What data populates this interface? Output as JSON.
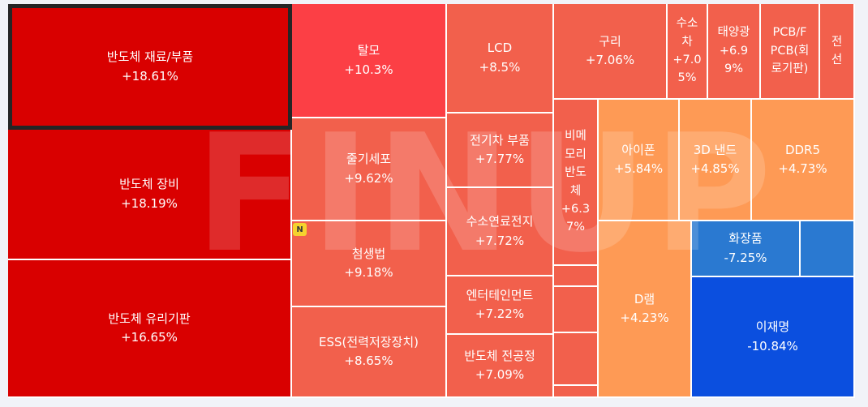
{
  "watermark": "FINUP",
  "badge": "N",
  "chart_data": {
    "type": "treemap",
    "items": [
      {
        "name": "반도체 재료/부품",
        "label_lines": [
          "반도체 재료/부품"
        ],
        "change": "+18.61%",
        "value": 18.61,
        "color": "#d90000",
        "selected": true
      },
      {
        "name": "반도체 장비",
        "label_lines": [
          "반도체 장비"
        ],
        "change": "+18.19%",
        "value": 18.19,
        "color": "#d90000"
      },
      {
        "name": "반도체 유리기판",
        "label_lines": [
          "반도체 유리기판"
        ],
        "change": "+16.65%",
        "value": 16.65,
        "color": "#d90000"
      },
      {
        "name": "탈모",
        "label_lines": [
          "탈모"
        ],
        "change": "+10.3%",
        "value": 10.3,
        "color": "#fc3f45"
      },
      {
        "name": "줄기세포",
        "label_lines": [
          "줄기세포"
        ],
        "change": "+9.62%",
        "value": 9.62,
        "color": "#f2604c"
      },
      {
        "name": "첨생법",
        "label_lines": [
          "첨생법"
        ],
        "change": "+9.18%",
        "value": 9.18,
        "color": "#f2604c"
      },
      {
        "name": "ESS(전력저장장치)",
        "label_lines": [
          "ESS(전력저장장치)"
        ],
        "change": "+8.65%",
        "value": 8.65,
        "color": "#f2604c"
      },
      {
        "name": "LCD",
        "label_lines": [
          "LCD"
        ],
        "change": "+8.5%",
        "value": 8.5,
        "color": "#f2604c"
      },
      {
        "name": "전기차 부품",
        "label_lines": [
          "전기차 부품"
        ],
        "change": "+7.77%",
        "value": 7.77,
        "color": "#f2604c"
      },
      {
        "name": "수소연료전지",
        "label_lines": [
          "수소연료전지"
        ],
        "change": "+7.72%",
        "value": 7.72,
        "color": "#f2604c"
      },
      {
        "name": "엔터테인먼트",
        "label_lines": [
          "엔터테인먼트"
        ],
        "change": "+7.22%",
        "value": 7.22,
        "color": "#f2604c"
      },
      {
        "name": "반도체 전공정",
        "label_lines": [
          "반도체 전공정"
        ],
        "change": "+7.09%",
        "value": 7.09,
        "color": "#f2604c"
      },
      {
        "name": "구리",
        "label_lines": [
          "구리"
        ],
        "change": "+7.06%",
        "value": 7.06,
        "color": "#f2604c"
      },
      {
        "name": "수소차",
        "label_lines": [
          "수소",
          "차"
        ],
        "change_lines": [
          "+7.0",
          "5%"
        ],
        "change": "+7.05%",
        "value": 7.05,
        "color": "#f2604c"
      },
      {
        "name": "태양광",
        "label_lines": [
          "태양광"
        ],
        "change_lines": [
          "+6.9",
          "9%"
        ],
        "change": "+6.99%",
        "value": 6.99,
        "color": "#f2604c"
      },
      {
        "name": "PCB/FPCB(회로기판)",
        "label_lines": [
          "PCB/F",
          "PCB(회",
          "로기판)"
        ],
        "change": "",
        "value": null,
        "color": "#f2604c"
      },
      {
        "name": "전선",
        "label_lines": [
          "전",
          "선"
        ],
        "change": "",
        "value": null,
        "color": "#f2604c"
      },
      {
        "name": "비메모리 반도체",
        "label_lines": [
          "비메",
          "모리",
          "반도",
          "체"
        ],
        "change_lines": [
          "+6.3",
          "7%"
        ],
        "change": "+6.37%",
        "value": 6.37,
        "color": "#f2604c"
      },
      {
        "name": "아이폰",
        "label_lines": [
          "아이폰"
        ],
        "change": "+5.84%",
        "value": 5.84,
        "color": "#fe9a55"
      },
      {
        "name": "3D 낸드",
        "label_lines": [
          "3D 낸드"
        ],
        "change": "+4.85%",
        "value": 4.85,
        "color": "#fe9a55"
      },
      {
        "name": "DDR5",
        "label_lines": [
          "DDR5"
        ],
        "change": "+4.73%",
        "value": 4.73,
        "color": "#fe9a55"
      },
      {
        "name": "D램",
        "label_lines": [
          "D램"
        ],
        "change": "+4.23%",
        "value": 4.23,
        "color": "#fe9a55"
      },
      {
        "name": "화장품",
        "label_lines": [
          "화장품"
        ],
        "change": "-7.25%",
        "value": -7.25,
        "color": "#2a79d1"
      },
      {
        "name": "이재명",
        "label_lines": [
          "이재명"
        ],
        "change": "-10.84%",
        "value": -10.84,
        "color": "#0b4fdf"
      },
      {
        "name": "",
        "label_lines": [],
        "change": "",
        "value": null,
        "color": "#f2604c"
      },
      {
        "name": "",
        "label_lines": [],
        "change": "",
        "value": null,
        "color": "#f2604c"
      },
      {
        "name": "",
        "label_lines": [],
        "change": "",
        "value": null,
        "color": "#f2604c"
      },
      {
        "name": "",
        "label_lines": [],
        "change": "",
        "value": null,
        "color": "#f2604c"
      },
      {
        "name": "",
        "label_lines": [],
        "change": "",
        "value": null,
        "color": "#fe9a55"
      },
      {
        "name": "",
        "label_lines": [],
        "change": "",
        "value": null,
        "color": "#2a79d1"
      },
      {
        "name": "",
        "label_lines": [],
        "change": "",
        "value": null,
        "color": "#2a79d1"
      }
    ]
  }
}
